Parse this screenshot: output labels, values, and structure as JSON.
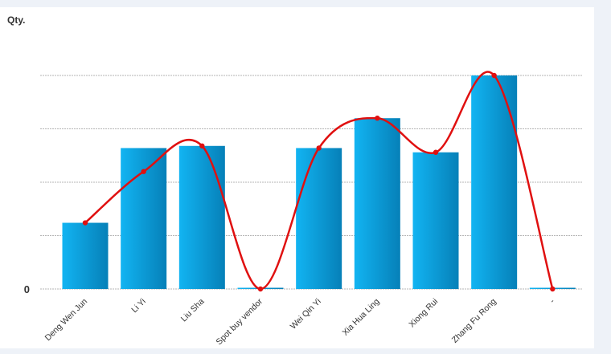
{
  "chart_data": {
    "type": "bar",
    "y_unit_label": "Qty.",
    "categories": [
      "Deng Wen Jun",
      "Li Yi",
      "Liu Sha",
      "Spot buy vendor",
      "Wei Qin Yi",
      "Xia Hua Ling",
      "Xiong Rui",
      "Zhang Fu Rong",
      "-"
    ],
    "values": [
      31,
      66,
      67,
      0,
      66,
      80,
      64,
      100,
      0
    ],
    "line_values": [
      31,
      55,
      67,
      0,
      66,
      80,
      64,
      100,
      0
    ],
    "ylim": [
      0,
      100
    ],
    "y_tick_labels": [
      "0",
      "",
      "",
      "",
      ""
    ],
    "grid": true,
    "bar_color_light": "#12b4f2",
    "bar_color_dark": "#0680b8",
    "line_color": "#e01010"
  }
}
